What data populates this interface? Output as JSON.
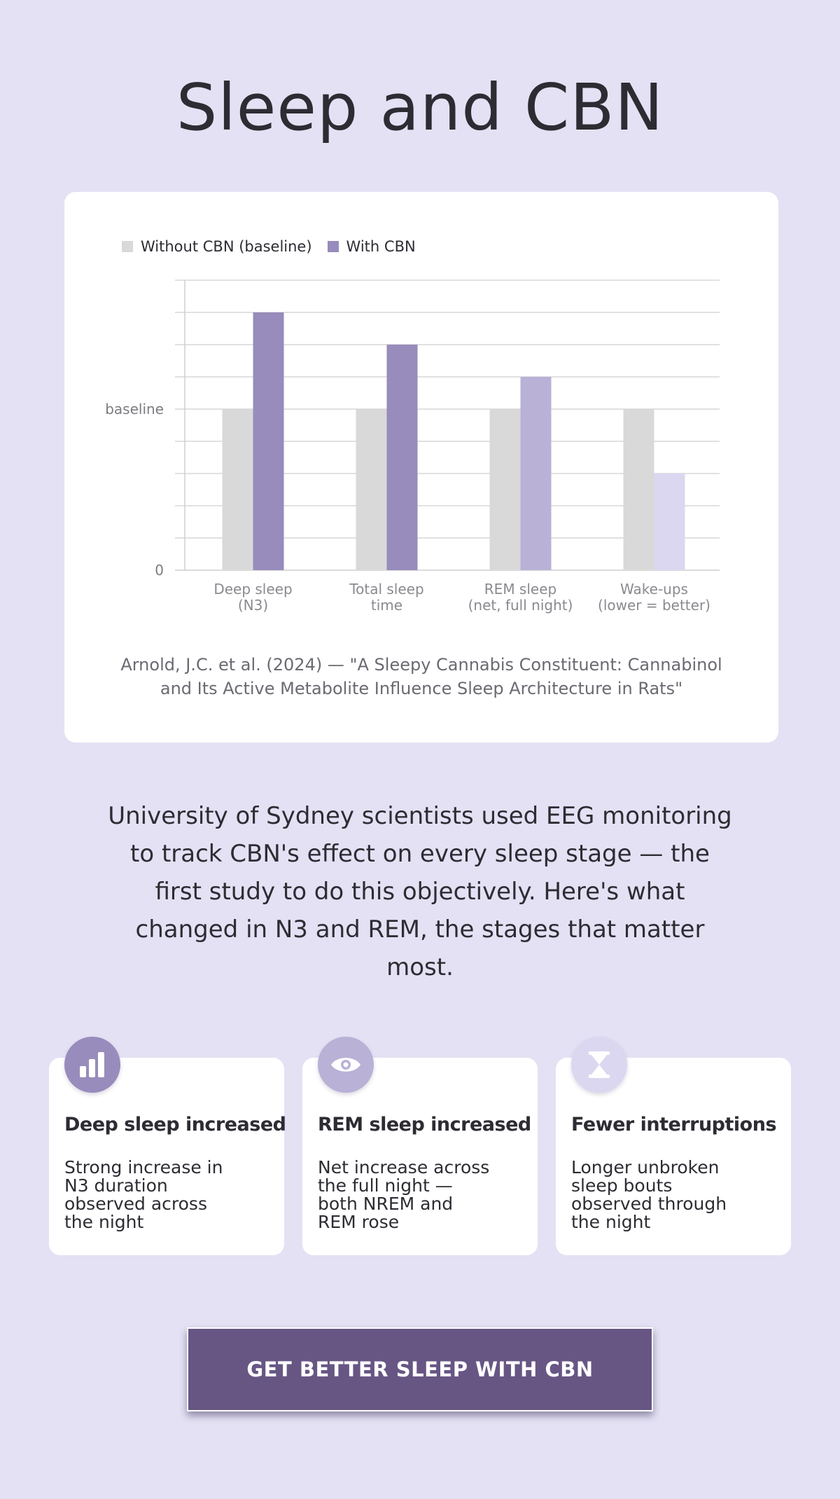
{
  "title": "Sleep and CBN",
  "colors": {
    "background": "#e4e1f4",
    "baseline_bar": "#d9d9d9",
    "cbn_bar": "#978cbb",
    "cbn_bar_light": "#b9b1d6",
    "cbn_bar_lighter": "#dcd7f0",
    "cta": "#675684"
  },
  "chart_data": {
    "type": "bar",
    "categories": [
      [
        "Deep sleep",
        "(N3)"
      ],
      [
        "Total sleep",
        "time"
      ],
      [
        "REM sleep",
        "(net, full night)"
      ],
      [
        "Wake-ups",
        "(lower = better)"
      ]
    ],
    "series": [
      {
        "name": "Without CBN (baseline)",
        "values": [
          1,
          1,
          1,
          1
        ],
        "color": "#d9d9d9"
      },
      {
        "name": "With CBN",
        "values": [
          1.6,
          1.4,
          1.2,
          0.6
        ],
        "colors": [
          "#978cbb",
          "#978cbb",
          "#b9b1d6",
          "#dcd7f0"
        ]
      }
    ],
    "ylim": [
      0,
      1.8
    ],
    "y_ticks": [
      {
        "value": 0,
        "label": "0"
      },
      {
        "value": 1,
        "label": "baseline"
      }
    ],
    "gridlines": [
      0.2,
      0.4,
      0.6,
      0.8,
      1.0,
      1.2,
      1.4,
      1.6,
      1.8
    ],
    "grid": true,
    "legend_position": "top-left"
  },
  "citation": "Arnold, J.C. et al. (2024) — \"A Sleepy Cannabis Constituent: Cannabinol and Its Active Metabolite Influence Sleep Architecture in Rats\"",
  "summary": "University of Sydney scientists used EEG monitoring to track CBN's effect on every sleep stage — the first study to do this objectively. Here's what changed in N3 and REM, the stages that matter most.",
  "cards": [
    {
      "icon": "bar-chart-icon",
      "icon_bg": "#978cbb",
      "title": "Deep sleep increased",
      "body": "Strong increase in N3 duration observed across the night"
    },
    {
      "icon": "eye-icon",
      "icon_bg": "#b9b1d6",
      "title": "REM sleep increased",
      "body": "Net increase across the full night — both NREM and REM rose"
    },
    {
      "icon": "hourglass-icon",
      "icon_bg": "#dcd7f0",
      "title": "Fewer interruptions",
      "body": "Longer unbroken sleep bouts observed through the night"
    }
  ],
  "cta": {
    "label": "GET BETTER SLEEP WITH CBN"
  }
}
